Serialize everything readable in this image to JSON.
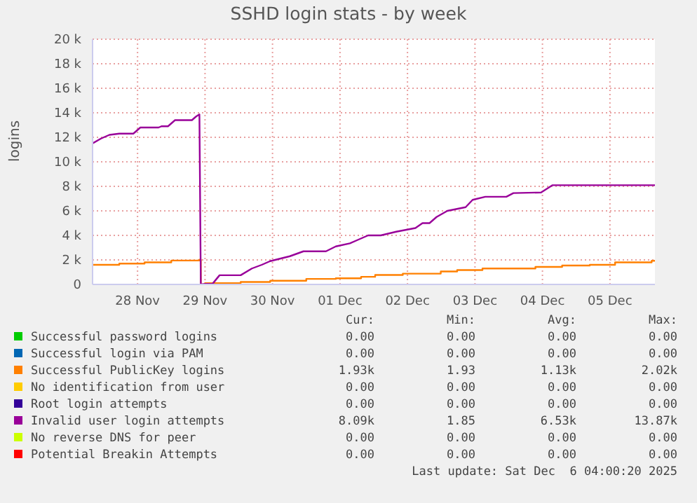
{
  "chart_data": {
    "type": "line",
    "title": "SSHD login stats - by week",
    "ylabel": "logins",
    "xlim": [
      "2025-11-27T20:00",
      "2025-12-06T04:00"
    ],
    "xticks": [
      {
        "value": "2025-11-28T12:00",
        "label": "28 Nov"
      },
      {
        "value": "2025-11-29T12:00",
        "label": "29 Nov"
      },
      {
        "value": "2025-11-30T12:00",
        "label": "30 Nov"
      },
      {
        "value": "2025-12-01T12:00",
        "label": "01 Dec"
      },
      {
        "value": "2025-12-02T12:00",
        "label": "02 Dec"
      },
      {
        "value": "2025-12-03T12:00",
        "label": "03 Dec"
      },
      {
        "value": "2025-12-04T12:00",
        "label": "04 Dec"
      },
      {
        "value": "2025-12-05T12:00",
        "label": "05 Dec"
      }
    ],
    "ylim": [
      0,
      20000
    ],
    "yticks": [
      {
        "value": 0,
        "label": "0"
      },
      {
        "value": 2000,
        "label": "2 k"
      },
      {
        "value": 4000,
        "label": "4 k"
      },
      {
        "value": 6000,
        "label": "6 k"
      },
      {
        "value": 8000,
        "label": "8 k"
      },
      {
        "value": 10000,
        "label": "10 k"
      },
      {
        "value": 12000,
        "label": "12 k"
      },
      {
        "value": 14000,
        "label": "14 k"
      },
      {
        "value": 16000,
        "label": "16 k"
      },
      {
        "value": 18000,
        "label": "18 k"
      },
      {
        "value": 20000,
        "label": "20 k"
      }
    ],
    "grid": true,
    "legend": "bottom",
    "series": [
      {
        "name": "Successful password logins",
        "color": "#00cc00"
      },
      {
        "name": "Successful login via PAM",
        "color": "#0066b3"
      },
      {
        "name": "Successful PublicKey logins",
        "color": "#ff8000",
        "type": "step",
        "x": [
          "2025-11-27T20:00",
          "2025-11-28T05:30",
          "2025-11-28T14:30",
          "2025-11-29T00:00",
          "2025-11-29T10:00",
          "2025-11-29T10:30",
          "2025-11-29T12:00",
          "2025-11-30T00:40",
          "2025-11-30T11:10",
          "2025-12-01T00:00",
          "2025-12-01T10:30",
          "2025-12-01T19:30",
          "2025-12-02T00:30",
          "2025-12-02T10:20",
          "2025-12-02T23:50",
          "2025-12-03T05:40",
          "2025-12-03T14:40",
          "2025-12-04T09:30",
          "2025-12-04T19:00",
          "2025-12-05T04:50",
          "2025-12-05T13:50",
          "2025-12-06T02:50",
          "2025-12-06T04:00"
        ],
        "values": [
          1600,
          1700,
          1800,
          1950,
          2020,
          0,
          100,
          200,
          300,
          450,
          500,
          620,
          770,
          880,
          1060,
          1170,
          1300,
          1430,
          1540,
          1600,
          1800,
          1930,
          1930
        ]
      },
      {
        "name": "No identification from user",
        "color": "#ffcc00"
      },
      {
        "name": "Root login attempts",
        "color": "#330099"
      },
      {
        "name": "Invalid user login attempts",
        "color": "#990099",
        "x": [
          "2025-11-27T20:00",
          "2025-11-27T23:00",
          "2025-11-28T02:00",
          "2025-11-28T05:30",
          "2025-11-28T10:30",
          "2025-11-28T13:00",
          "2025-11-28T19:30",
          "2025-11-28T20:30",
          "2025-11-28T22:50",
          "2025-11-29T01:20",
          "2025-11-29T07:20",
          "2025-11-29T08:50",
          "2025-11-29T10:00",
          "2025-11-29T10:30",
          "2025-11-29T12:00",
          "2025-11-29T14:40",
          "2025-11-29T17:10",
          "2025-11-30T00:40",
          "2025-11-30T04:40",
          "2025-11-30T08:10",
          "2025-11-30T11:10",
          "2025-11-30T18:10",
          "2025-11-30T23:00",
          "2025-12-01T07:00",
          "2025-12-01T10:30",
          "2025-12-01T15:30",
          "2025-12-01T18:00",
          "2025-12-01T22:00",
          "2025-12-02T02:30",
          "2025-12-02T08:00",
          "2025-12-02T14:50",
          "2025-12-02T17:20",
          "2025-12-02T19:50",
          "2025-12-02T22:20",
          "2025-12-03T02:10",
          "2025-12-03T08:40",
          "2025-12-03T11:10",
          "2025-12-03T15:40",
          "2025-12-03T23:10",
          "2025-12-04T01:40",
          "2025-12-04T11:30",
          "2025-12-04T15:30",
          "2025-12-06T04:00"
        ],
        "values": [
          11500,
          11900,
          12200,
          12300,
          12300,
          12800,
          12800,
          12900,
          12900,
          13400,
          13400,
          13700,
          13870,
          0,
          50,
          50,
          750,
          750,
          1300,
          1600,
          1900,
          2300,
          2700,
          2700,
          3100,
          3350,
          3600,
          4000,
          4000,
          4300,
          4600,
          5000,
          5000,
          5500,
          6000,
          6300,
          6900,
          7150,
          7150,
          7450,
          7500,
          8090,
          8090
        ]
      },
      {
        "name": "No reverse DNS for peer",
        "color": "#ccff00"
      },
      {
        "name": "Potential Breakin Attempts",
        "color": "#ff0000"
      }
    ],
    "annotations": [
      "Cur:",
      "Min:",
      "Avg:",
      "Max:",
      "0.00",
      "0.00",
      "0.00",
      "0.00",
      "0.00",
      "0.00",
      "0.00",
      "0.00",
      "1.93k",
      "1.93",
      "1.13k",
      "2.02k",
      "0.00",
      "0.00",
      "0.00",
      "0.00",
      "0.00",
      "0.00",
      "0.00",
      "0.00",
      "8.09k",
      "1.85",
      "6.53k",
      "13.87k",
      "0.00",
      "0.00",
      "0.00",
      "0.00",
      "0.00",
      "0.00",
      "0.00",
      "0.00",
      "Last update: Sat Dec  6 04:00:20 2025"
    ]
  }
}
